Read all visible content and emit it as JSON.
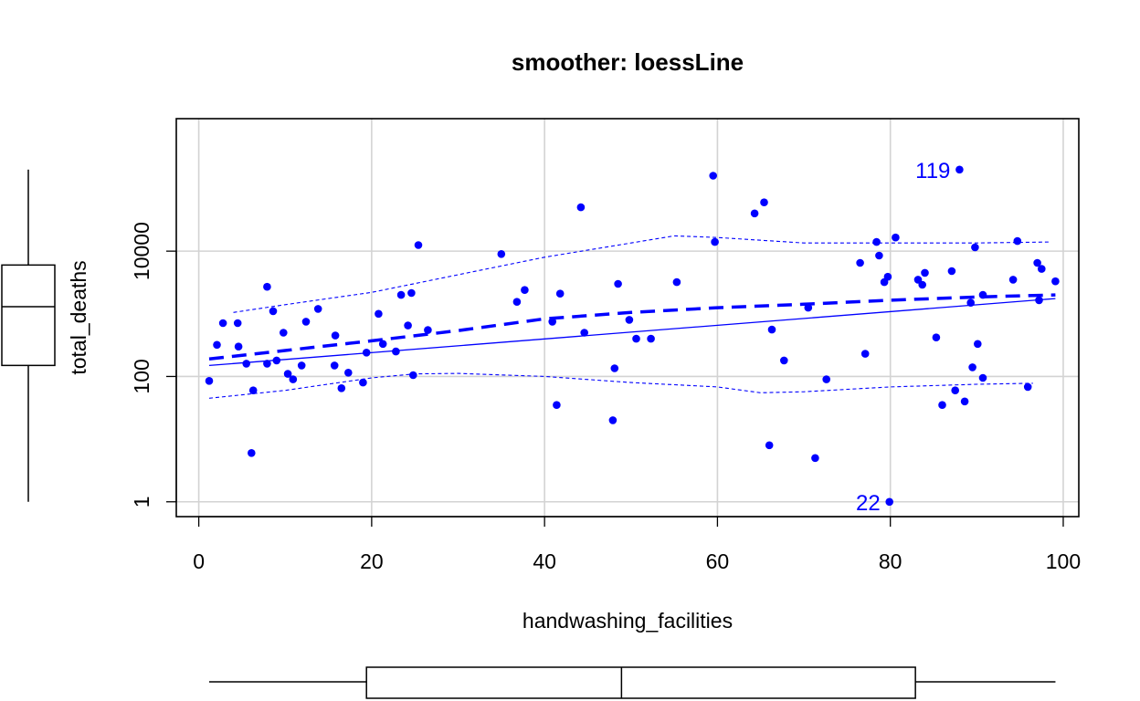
{
  "chart_data": {
    "type": "scatter",
    "title": "smoother: loessLine",
    "xlabel": "handwashing_facilities",
    "ylabel": "total_deaths",
    "x_ticks": [
      "0",
      "20",
      "40",
      "60",
      "80",
      "100"
    ],
    "x_tick_values": [
      0,
      20,
      40,
      60,
      80,
      100
    ],
    "y_ticks": [
      "1",
      "100",
      "10000"
    ],
    "y_tick_values": [
      1,
      100,
      10000
    ],
    "xlim": [
      -2.6,
      101.8
    ],
    "ylim": [
      0.58,
      1300000
    ],
    "log_y": true,
    "grid": true,
    "point_color": "#0000ff",
    "line_color": "#0000ff",
    "points": [
      [
        1.2,
        85
      ],
      [
        2.1,
        320
      ],
      [
        2.8,
        710
      ],
      [
        4.5,
        710
      ],
      [
        4.6,
        300
      ],
      [
        5.5,
        160
      ],
      [
        6.1,
        6
      ],
      [
        6.3,
        60
      ],
      [
        7.9,
        2700
      ],
      [
        7.9,
        160
      ],
      [
        8.6,
        1100
      ],
      [
        9.0,
        180
      ],
      [
        9.8,
        500
      ],
      [
        10.3,
        110
      ],
      [
        10.9,
        90
      ],
      [
        11.9,
        150
      ],
      [
        12.4,
        750
      ],
      [
        13.8,
        1200
      ],
      [
        15.7,
        150
      ],
      [
        15.8,
        450
      ],
      [
        16.5,
        65
      ],
      [
        17.3,
        115
      ],
      [
        19.0,
        80
      ],
      [
        19.4,
        240
      ],
      [
        20.8,
        1000
      ],
      [
        21.3,
        330
      ],
      [
        22.8,
        250
      ],
      [
        23.4,
        2000
      ],
      [
        24.2,
        650
      ],
      [
        24.6,
        2150
      ],
      [
        24.8,
        105
      ],
      [
        25.4,
        12500
      ],
      [
        26.5,
        550
      ],
      [
        35.0,
        9000
      ],
      [
        36.8,
        1550
      ],
      [
        37.7,
        2400
      ],
      [
        40.9,
        750
      ],
      [
        41.4,
        35
      ],
      [
        41.8,
        2100
      ],
      [
        44.2,
        50000
      ],
      [
        44.6,
        500
      ],
      [
        47.9,
        20
      ],
      [
        48.1,
        135
      ],
      [
        48.5,
        3000
      ],
      [
        49.8,
        800
      ],
      [
        50.6,
        400
      ],
      [
        52.3,
        400
      ],
      [
        55.3,
        3200
      ],
      [
        59.5,
        160000
      ],
      [
        59.7,
        14000
      ],
      [
        64.3,
        40000
      ],
      [
        65.4,
        60000
      ],
      [
        66.0,
        8
      ],
      [
        66.3,
        560
      ],
      [
        67.7,
        180
      ],
      [
        70.5,
        1250
      ],
      [
        71.3,
        5
      ],
      [
        72.6,
        90
      ],
      [
        76.5,
        6500
      ],
      [
        77.1,
        230
      ],
      [
        78.4,
        14000
      ],
      [
        78.7,
        8500
      ],
      [
        79.3,
        3200
      ],
      [
        79.7,
        3900
      ],
      [
        79.9,
        1
      ],
      [
        80.6,
        16500
      ],
      [
        83.2,
        3500
      ],
      [
        83.7,
        2900
      ],
      [
        84.0,
        4500
      ],
      [
        85.3,
        420
      ],
      [
        86.0,
        35
      ],
      [
        87.1,
        4800
      ],
      [
        87.5,
        60
      ],
      [
        88.0,
        200000
      ],
      [
        88.6,
        40
      ],
      [
        89.3,
        1500
      ],
      [
        89.5,
        140
      ],
      [
        89.8,
        11500
      ],
      [
        90.1,
        330
      ],
      [
        90.7,
        2000
      ],
      [
        90.7,
        95
      ],
      [
        94.2,
        3500
      ],
      [
        94.7,
        14500
      ],
      [
        95.9,
        68
      ],
      [
        97.0,
        6500
      ],
      [
        97.2,
        1650
      ],
      [
        97.5,
        5200
      ],
      [
        99.1,
        3300
      ]
    ],
    "labels": [
      {
        "text": "119",
        "x": 88.0,
        "y": 200000
      },
      {
        "text": "22",
        "x": 79.9,
        "y": 1
      }
    ],
    "ls_line": {
      "x": [
        1.2,
        99.1
      ],
      "y": [
        150,
        1750
      ]
    },
    "loess_smooth": {
      "x": [
        1.2,
        10,
        20,
        30,
        40,
        50,
        60,
        70,
        80,
        90,
        99.1
      ],
      "y": [
        190,
        260,
        370,
        540,
        830,
        1050,
        1250,
        1420,
        1650,
        1850,
        2000
      ]
    },
    "loess_upper": {
      "x": [
        4.0,
        10,
        20,
        30,
        40,
        50,
        55,
        60,
        70,
        80,
        90,
        98.5
      ],
      "y": [
        1050,
        1400,
        2200,
        4200,
        8000,
        13500,
        17500,
        16500,
        13500,
        13500,
        13500,
        14000
      ]
    },
    "loess_lower": {
      "x": [
        1.2,
        10,
        20,
        25,
        30,
        40,
        50,
        60,
        65,
        70,
        80,
        90,
        96.5
      ],
      "y": [
        45,
        60,
        95,
        110,
        112,
        100,
        80,
        68,
        55,
        57,
        68,
        75,
        78
      ]
    },
    "x_boxplot": {
      "whisker_low": 1.2,
      "q1": 19.4,
      "median": 48.9,
      "q3": 82.9,
      "whisker_high": 99.1
    },
    "y_boxplot": {
      "whisker_low": 1,
      "q1": 150,
      "median": 1300,
      "q3": 6000,
      "whisker_high": 200000
    }
  }
}
